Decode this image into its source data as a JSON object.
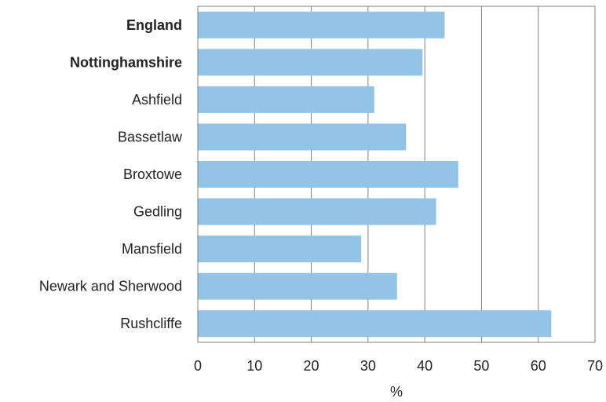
{
  "chart_data": {
    "type": "bar",
    "orientation": "horizontal",
    "categories": [
      "England",
      "Nottinghamshire",
      "Ashfield",
      "Bassetlaw",
      "Broxtowe",
      "Gedling",
      "Mansfield",
      "Newark and Sherwood",
      "Rushcliffe"
    ],
    "bold_categories": [
      "England",
      "Nottinghamshire"
    ],
    "values": [
      43.5,
      39.6,
      31.1,
      36.7,
      45.9,
      42.0,
      28.8,
      35.1,
      62.3
    ],
    "xlabel": "%",
    "ylabel": "",
    "xlim": [
      0,
      70
    ],
    "xticks": [
      0,
      10,
      20,
      30,
      40,
      50,
      60,
      70
    ],
    "grid": "vertical",
    "bar_color": "#93c4e8",
    "grid_color": "#808080"
  }
}
